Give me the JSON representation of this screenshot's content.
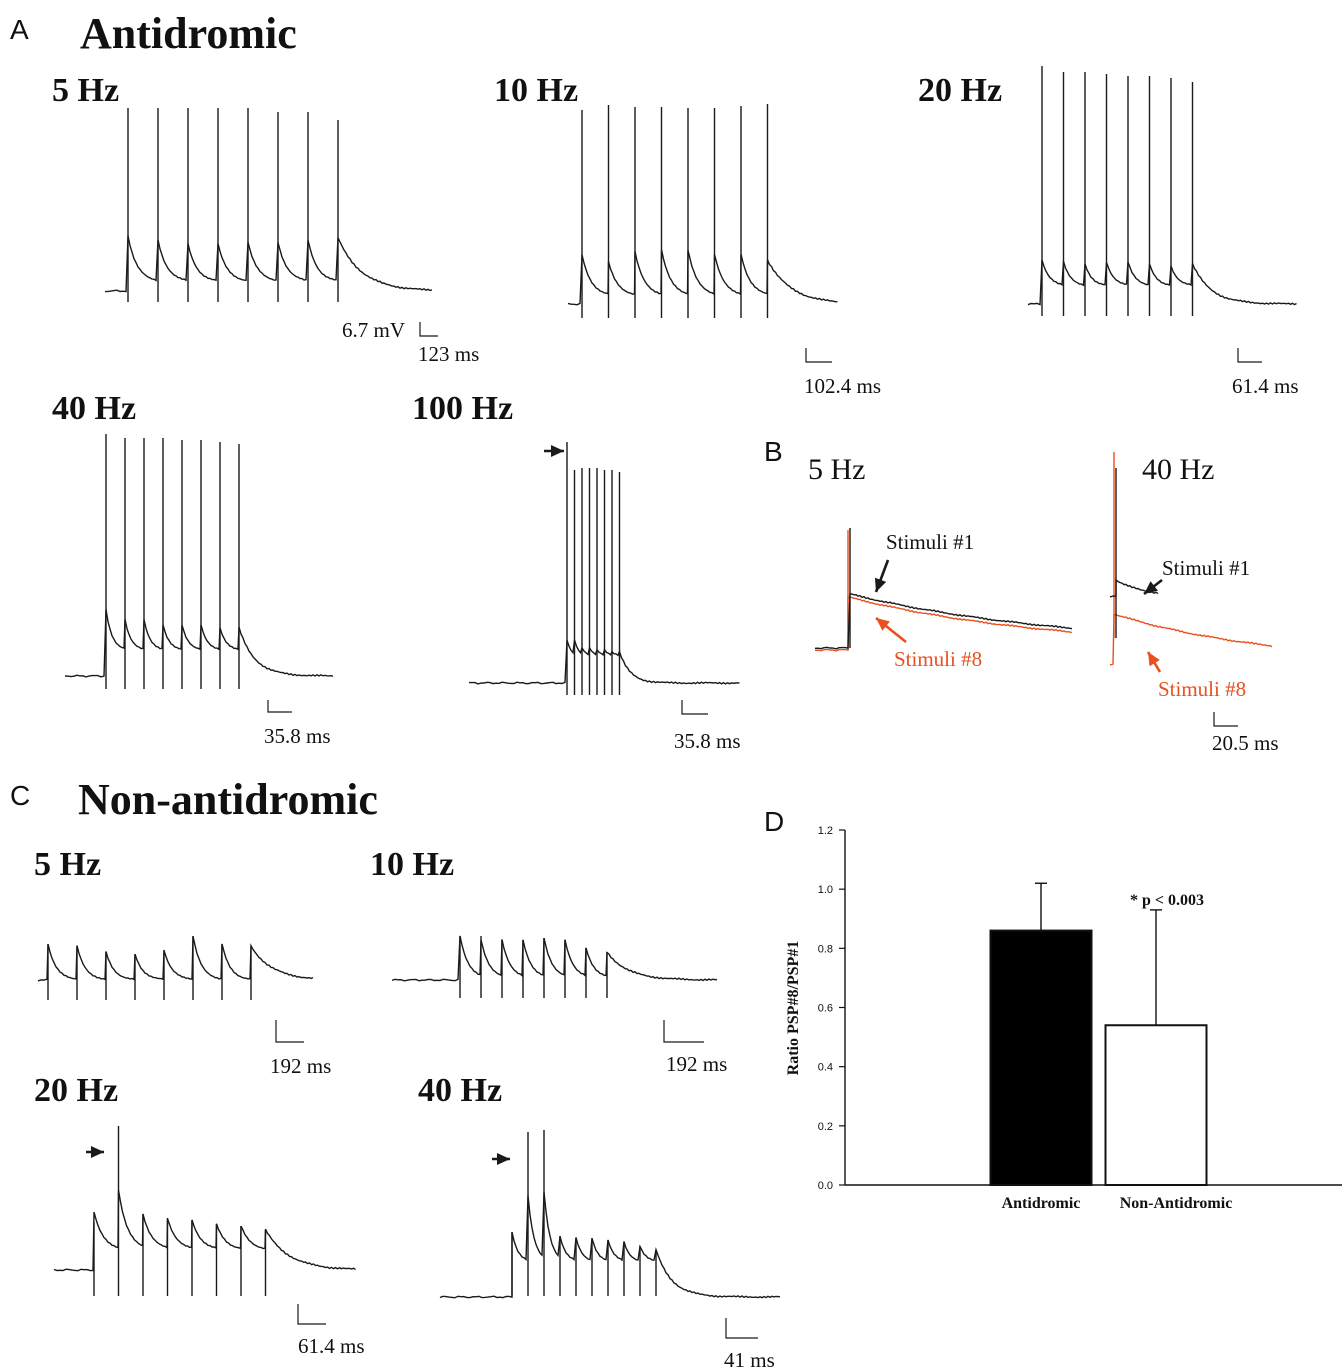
{
  "colors": {
    "trace": "#1a1a1a",
    "stim8": "#e8501e",
    "bar_antidromic": "#000000",
    "bar_non_antidromic": "#ffffff"
  },
  "panels": {
    "A": {
      "letter": "A",
      "title": "Antidromic",
      "traces": [
        {
          "title": "5 Hz",
          "scale_voltage": "6.7 mV",
          "scale_time": "123 ms"
        },
        {
          "title": "10 Hz",
          "scale_time": "102.4 ms"
        },
        {
          "title": "20 Hz",
          "scale_time": "61.4 ms"
        },
        {
          "title": "40 Hz",
          "scale_time": "35.8 ms"
        },
        {
          "title": "100 Hz",
          "scale_time": "35.8 ms"
        }
      ]
    },
    "B": {
      "letter": "B",
      "traces": [
        {
          "title": "5 Hz",
          "stim1": "Stimuli #1",
          "stim8": "Stimuli #8"
        },
        {
          "title": "40 Hz",
          "stim1": "Stimuli #1",
          "stim8": "Stimuli #8",
          "scale_time": "20.5 ms"
        }
      ]
    },
    "C": {
      "letter": "C",
      "title": "Non-antidromic",
      "traces": [
        {
          "title": "5 Hz",
          "scale_time": "192 ms"
        },
        {
          "title": "10 Hz",
          "scale_time": "192 ms"
        },
        {
          "title": "20 Hz",
          "scale_time": "61.4 ms"
        },
        {
          "title": "40 Hz",
          "scale_time": "41 ms"
        }
      ]
    },
    "D": {
      "letter": "D"
    }
  },
  "chart_data": {
    "type": "bar",
    "categories": [
      "Antidromic",
      "Non-Antidromic"
    ],
    "values": [
      0.86,
      0.54
    ],
    "error_bars": [
      0.16,
      0.39
    ],
    "ylabel": "Ratio PSP#8/PSP#1",
    "ylim": [
      0.0,
      1.2
    ],
    "yticks": [
      "0.0",
      "0.2",
      "0.4",
      "0.6",
      "0.8",
      "1.0",
      "1.2"
    ],
    "annotation": "* p < 0.003",
    "bar_colors": [
      "#000000",
      "#ffffff"
    ]
  }
}
